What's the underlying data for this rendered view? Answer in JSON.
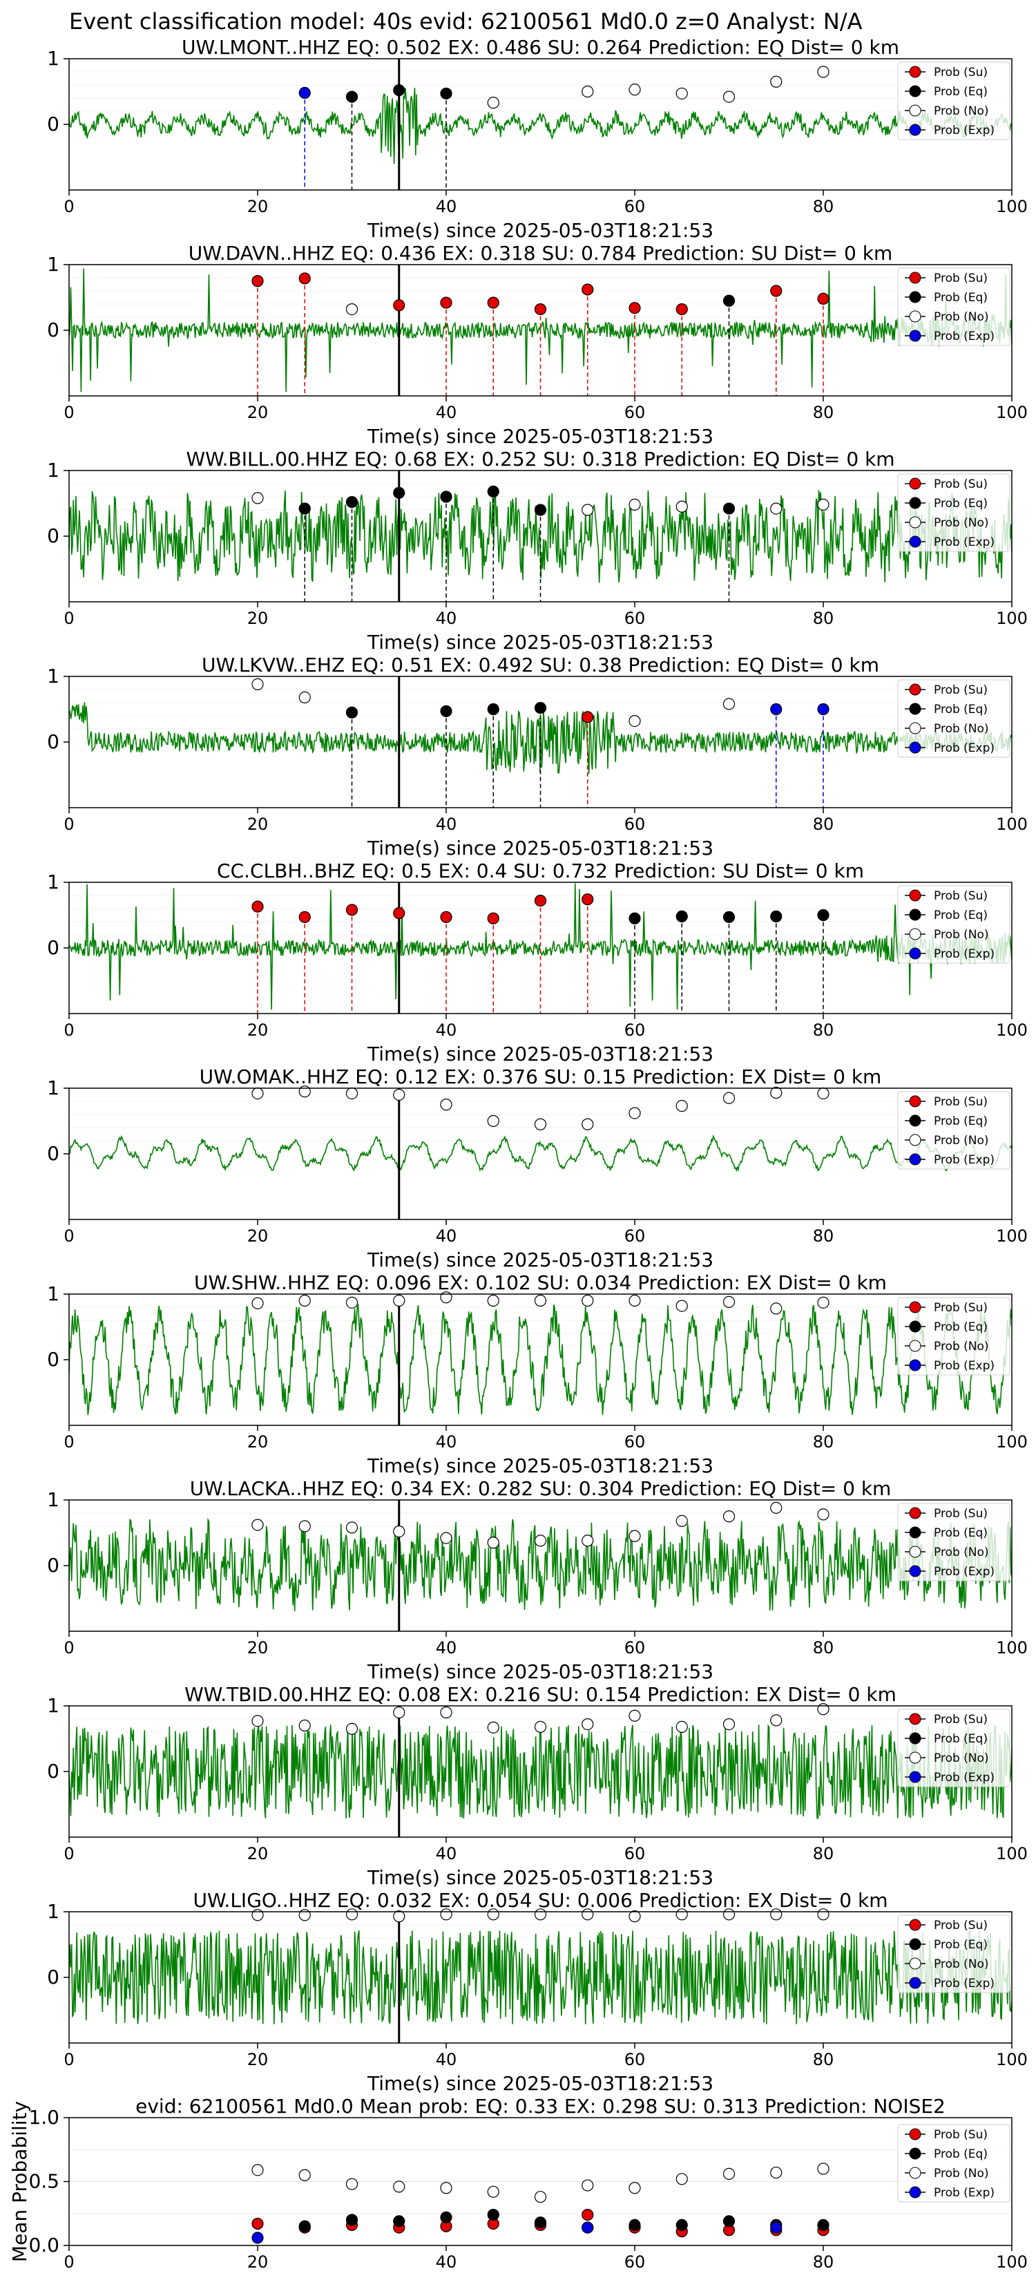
{
  "figure": {
    "suptitle": "Event classification model: 40s evid: 62100561 Md0.0 z=0 Analyst: N/A",
    "xlabel": "Time(s) since 2025-05-03T18:21:53",
    "legend": [
      "Prob (Su)",
      "Prob (Eq)",
      "Prob (No)",
      "Prob (Exp)"
    ],
    "colors": {
      "su": "#e00000",
      "eq": "#000000",
      "no": "#ffffff",
      "exp": "#0000e0",
      "trace": "#007f00",
      "marker_line": "#000000"
    }
  },
  "chart_data": [
    {
      "type": "scatter",
      "title": "UW.LMONT..HHZ   EQ: 0.502  EX: 0.486  SU: 0.264   Prediction: EQ    Dist= 0 km",
      "xlim": [
        0,
        100
      ],
      "xticks": [
        0,
        20,
        40,
        60,
        80,
        100
      ],
      "yticks": [
        0,
        1
      ],
      "event_line_x": 35,
      "trace_seed": 11,
      "trace_style": "burst",
      "series": [
        {
          "name": "Prob (Su)",
          "points": []
        },
        {
          "name": "Prob (Eq)",
          "points": [
            [
              30,
              0.42
            ],
            [
              35,
              0.52
            ],
            [
              40,
              0.47
            ]
          ]
        },
        {
          "name": "Prob (No)",
          "points": [
            [
              45,
              0.33
            ],
            [
              55,
              0.5
            ],
            [
              60,
              0.53
            ],
            [
              65,
              0.47
            ],
            [
              70,
              0.42
            ],
            [
              75,
              0.65
            ],
            [
              80,
              0.8
            ]
          ]
        },
        {
          "name": "Prob (Exp)",
          "points": [
            [
              25,
              0.48
            ]
          ]
        }
      ]
    },
    {
      "type": "scatter",
      "title": "UW.DAVN..HHZ   EQ: 0.436  EX: 0.318  SU: 0.784   Prediction: SU    Dist= 0 km",
      "xlim": [
        0,
        100
      ],
      "xticks": [
        0,
        20,
        40,
        60,
        80,
        100
      ],
      "yticks": [
        0,
        1
      ],
      "event_line_x": 35,
      "trace_seed": 22,
      "trace_style": "spiky",
      "series": [
        {
          "name": "Prob (Su)",
          "points": [
            [
              20,
              0.75
            ],
            [
              25,
              0.79
            ],
            [
              35,
              0.38
            ],
            [
              40,
              0.42
            ],
            [
              45,
              0.42
            ],
            [
              50,
              0.32
            ],
            [
              55,
              0.62
            ],
            [
              60,
              0.34
            ],
            [
              65,
              0.32
            ],
            [
              75,
              0.6
            ],
            [
              80,
              0.48
            ]
          ]
        },
        {
          "name": "Prob (Eq)",
          "points": [
            [
              70,
              0.45
            ]
          ]
        },
        {
          "name": "Prob (No)",
          "points": [
            [
              30,
              0.32
            ]
          ]
        },
        {
          "name": "Prob (Exp)",
          "points": []
        }
      ]
    },
    {
      "type": "scatter",
      "title": "WW.BILL.00.HHZ   EQ: 0.68  EX: 0.252  SU: 0.318   Prediction: EQ    Dist= 0 km",
      "xlim": [
        0,
        100
      ],
      "xticks": [
        0,
        20,
        40,
        60,
        80,
        100
      ],
      "yticks": [
        0,
        1
      ],
      "event_line_x": 35,
      "trace_seed": 33,
      "trace_style": "noisy",
      "series": [
        {
          "name": "Prob (Su)",
          "points": []
        },
        {
          "name": "Prob (Eq)",
          "points": [
            [
              25,
              0.42
            ],
            [
              30,
              0.52
            ],
            [
              35,
              0.66
            ],
            [
              40,
              0.6
            ],
            [
              45,
              0.68
            ],
            [
              50,
              0.4
            ],
            [
              70,
              0.42
            ]
          ]
        },
        {
          "name": "Prob (No)",
          "points": [
            [
              20,
              0.58
            ],
            [
              55,
              0.4
            ],
            [
              60,
              0.48
            ],
            [
              65,
              0.45
            ],
            [
              75,
              0.42
            ],
            [
              80,
              0.48
            ]
          ]
        },
        {
          "name": "Prob (Exp)",
          "points": []
        }
      ]
    },
    {
      "type": "scatter",
      "title": "UW.LKVW..EHZ   EQ: 0.51  EX: 0.492  SU: 0.38   Prediction: EQ    Dist= 0 km",
      "xlim": [
        0,
        100
      ],
      "xticks": [
        0,
        20,
        40,
        60,
        80,
        100
      ],
      "yticks": [
        0,
        1
      ],
      "event_line_x": 35,
      "trace_seed": 44,
      "trace_style": "quiet",
      "series": [
        {
          "name": "Prob (Su)",
          "points": [
            [
              55,
              0.38
            ]
          ]
        },
        {
          "name": "Prob (Eq)",
          "points": [
            [
              30,
              0.45
            ],
            [
              40,
              0.47
            ],
            [
              45,
              0.5
            ],
            [
              50,
              0.52
            ]
          ]
        },
        {
          "name": "Prob (No)",
          "points": [
            [
              20,
              0.88
            ],
            [
              25,
              0.68
            ],
            [
              60,
              0.32
            ],
            [
              70,
              0.58
            ]
          ]
        },
        {
          "name": "Prob (Exp)",
          "points": [
            [
              75,
              0.5
            ],
            [
              80,
              0.5
            ]
          ]
        }
      ]
    },
    {
      "type": "scatter",
      "title": "CC.CLBH..BHZ   EQ: 0.5  EX: 0.4  SU: 0.732   Prediction: SU    Dist= 0 km",
      "xlim": [
        0,
        100
      ],
      "xticks": [
        0,
        20,
        40,
        60,
        80,
        100
      ],
      "yticks": [
        0,
        1
      ],
      "event_line_x": 35,
      "trace_seed": 55,
      "trace_style": "spiky",
      "series": [
        {
          "name": "Prob (Su)",
          "points": [
            [
              20,
              0.63
            ],
            [
              25,
              0.47
            ],
            [
              30,
              0.58
            ],
            [
              35,
              0.53
            ],
            [
              40,
              0.47
            ],
            [
              45,
              0.45
            ],
            [
              50,
              0.72
            ],
            [
              55,
              0.74
            ]
          ]
        },
        {
          "name": "Prob (Eq)",
          "points": [
            [
              60,
              0.45
            ],
            [
              65,
              0.48
            ],
            [
              70,
              0.47
            ],
            [
              75,
              0.48
            ],
            [
              80,
              0.5
            ]
          ]
        },
        {
          "name": "Prob (No)",
          "points": []
        },
        {
          "name": "Prob (Exp)",
          "points": []
        }
      ]
    },
    {
      "type": "scatter",
      "title": "UW.OMAK..HHZ   EQ: 0.12  EX: 0.376  SU: 0.15   Prediction: EX    Dist= 0 km",
      "xlim": [
        0,
        100
      ],
      "xticks": [
        0,
        20,
        40,
        60,
        80,
        100
      ],
      "yticks": [
        0,
        1
      ],
      "event_line_x": 35,
      "trace_seed": 66,
      "trace_style": "smooth",
      "series": [
        {
          "name": "Prob (Su)",
          "points": []
        },
        {
          "name": "Prob (Eq)",
          "points": []
        },
        {
          "name": "Prob (No)",
          "points": [
            [
              20,
              0.92
            ],
            [
              25,
              0.95
            ],
            [
              30,
              0.92
            ],
            [
              35,
              0.9
            ],
            [
              40,
              0.75
            ],
            [
              45,
              0.5
            ],
            [
              50,
              0.45
            ],
            [
              55,
              0.45
            ],
            [
              60,
              0.62
            ],
            [
              65,
              0.73
            ],
            [
              70,
              0.85
            ],
            [
              75,
              0.93
            ],
            [
              80,
              0.92
            ]
          ]
        },
        {
          "name": "Prob (Exp)",
          "points": []
        }
      ]
    },
    {
      "type": "scatter",
      "title": "UW.SHW..HHZ   EQ: 0.096  EX: 0.102  SU: 0.034   Prediction: EX    Dist= 0 km",
      "xlim": [
        0,
        100
      ],
      "xticks": [
        0,
        20,
        40,
        60,
        80,
        100
      ],
      "yticks": [
        0,
        1
      ],
      "event_line_x": 35,
      "trace_seed": 77,
      "trace_style": "wave",
      "series": [
        {
          "name": "Prob (Su)",
          "points": []
        },
        {
          "name": "Prob (Eq)",
          "points": []
        },
        {
          "name": "Prob (No)",
          "points": [
            [
              20,
              0.86
            ],
            [
              25,
              0.9
            ],
            [
              30,
              0.87
            ],
            [
              35,
              0.9
            ],
            [
              40,
              0.95
            ],
            [
              45,
              0.9
            ],
            [
              50,
              0.9
            ],
            [
              55,
              0.9
            ],
            [
              60,
              0.9
            ],
            [
              65,
              0.82
            ],
            [
              70,
              0.88
            ],
            [
              75,
              0.78
            ],
            [
              80,
              0.87
            ]
          ]
        },
        {
          "name": "Prob (Exp)",
          "points": []
        }
      ]
    },
    {
      "type": "scatter",
      "title": "UW.LACKA..HHZ   EQ: 0.34  EX: 0.282  SU: 0.304   Prediction: EQ    Dist= 0 km",
      "xlim": [
        0,
        100
      ],
      "xticks": [
        0,
        20,
        40,
        60,
        80,
        100
      ],
      "yticks": [
        0,
        1
      ],
      "event_line_x": 35,
      "trace_seed": 88,
      "trace_style": "noisy",
      "series": [
        {
          "name": "Prob (Su)",
          "points": []
        },
        {
          "name": "Prob (Eq)",
          "points": []
        },
        {
          "name": "Prob (No)",
          "points": [
            [
              20,
              0.62
            ],
            [
              25,
              0.6
            ],
            [
              30,
              0.58
            ],
            [
              35,
              0.52
            ],
            [
              40,
              0.42
            ],
            [
              45,
              0.35
            ],
            [
              50,
              0.38
            ],
            [
              55,
              0.38
            ],
            [
              60,
              0.45
            ],
            [
              65,
              0.68
            ],
            [
              70,
              0.75
            ],
            [
              75,
              0.88
            ],
            [
              80,
              0.78
            ]
          ]
        },
        {
          "name": "Prob (Exp)",
          "points": []
        }
      ]
    },
    {
      "type": "scatter",
      "title": "WW.TBID.00.HHZ   EQ: 0.08  EX: 0.216  SU: 0.154   Prediction: EX    Dist= 0 km",
      "xlim": [
        0,
        100
      ],
      "xticks": [
        0,
        20,
        40,
        60,
        80,
        100
      ],
      "yticks": [
        0,
        1
      ],
      "event_line_x": 35,
      "trace_seed": 99,
      "trace_style": "dense",
      "series": [
        {
          "name": "Prob (Su)",
          "points": []
        },
        {
          "name": "Prob (Eq)",
          "points": []
        },
        {
          "name": "Prob (No)",
          "points": [
            [
              20,
              0.77
            ],
            [
              25,
              0.7
            ],
            [
              30,
              0.65
            ],
            [
              35,
              0.9
            ],
            [
              40,
              0.9
            ],
            [
              45,
              0.67
            ],
            [
              50,
              0.68
            ],
            [
              55,
              0.72
            ],
            [
              60,
              0.85
            ],
            [
              65,
              0.68
            ],
            [
              70,
              0.72
            ],
            [
              75,
              0.78
            ],
            [
              80,
              0.95
            ]
          ]
        },
        {
          "name": "Prob (Exp)",
          "points": []
        }
      ]
    },
    {
      "type": "scatter",
      "title": "UW.LIGO..HHZ   EQ: 0.032  EX: 0.054  SU: 0.006   Prediction: EX    Dist= 0 km",
      "xlim": [
        0,
        100
      ],
      "xticks": [
        0,
        20,
        40,
        60,
        80,
        100
      ],
      "yticks": [
        0,
        1
      ],
      "event_line_x": 35,
      "trace_seed": 111,
      "trace_style": "dense",
      "series": [
        {
          "name": "Prob (Su)",
          "points": []
        },
        {
          "name": "Prob (Eq)",
          "points": []
        },
        {
          "name": "Prob (No)",
          "points": [
            [
              20,
              0.95
            ],
            [
              25,
              0.95
            ],
            [
              30,
              0.96
            ],
            [
              35,
              0.93
            ],
            [
              40,
              0.96
            ],
            [
              45,
              0.96
            ],
            [
              50,
              0.96
            ],
            [
              55,
              0.96
            ],
            [
              60,
              0.93
            ],
            [
              65,
              0.96
            ],
            [
              70,
              0.96
            ],
            [
              75,
              0.96
            ],
            [
              80,
              0.96
            ]
          ]
        },
        {
          "name": "Prob (Exp)",
          "points": []
        }
      ]
    },
    {
      "type": "scatter",
      "title": "evid: 62100561  Md0.0   Mean prob:   EQ: 0.33  EX: 0.298  SU: 0.313   Prediction: NOISE2",
      "ylabel": "Mean Probability",
      "xlim": [
        0,
        100
      ],
      "ylim": [
        0,
        1
      ],
      "xticks": [
        0,
        20,
        40,
        60,
        80,
        100
      ],
      "yticks": [
        0,
        0.5,
        1
      ],
      "ytick_labels": [
        "0.0",
        "0.5",
        "1.0"
      ],
      "series": [
        {
          "name": "Prob (Su)",
          "points": [
            [
              20,
              0.17
            ],
            [
              25,
              0.14
            ],
            [
              30,
              0.16
            ],
            [
              35,
              0.14
            ],
            [
              40,
              0.15
            ],
            [
              45,
              0.17
            ],
            [
              50,
              0.16
            ],
            [
              55,
              0.24
            ],
            [
              60,
              0.14
            ],
            [
              65,
              0.11
            ],
            [
              70,
              0.12
            ],
            [
              75,
              0.12
            ],
            [
              80,
              0.12
            ]
          ]
        },
        {
          "name": "Prob (Eq)",
          "points": [
            [
              25,
              0.15
            ],
            [
              30,
              0.2
            ],
            [
              35,
              0.19
            ],
            [
              40,
              0.22
            ],
            [
              45,
              0.24
            ],
            [
              50,
              0.18
            ],
            [
              55,
              0.14
            ],
            [
              60,
              0.16
            ],
            [
              65,
              0.16
            ],
            [
              70,
              0.19
            ],
            [
              75,
              0.16
            ],
            [
              80,
              0.16
            ]
          ]
        },
        {
          "name": "Prob (No)",
          "points": [
            [
              20,
              0.59
            ],
            [
              25,
              0.55
            ],
            [
              30,
              0.48
            ],
            [
              35,
              0.46
            ],
            [
              40,
              0.45
            ],
            [
              45,
              0.42
            ],
            [
              50,
              0.38
            ],
            [
              55,
              0.47
            ],
            [
              60,
              0.45
            ],
            [
              65,
              0.52
            ],
            [
              70,
              0.56
            ],
            [
              75,
              0.57
            ],
            [
              80,
              0.6
            ]
          ]
        },
        {
          "name": "Prob (Exp)",
          "points": [
            [
              20,
              0.06
            ],
            [
              55,
              0.14
            ],
            [
              75,
              0.14
            ]
          ]
        }
      ]
    }
  ]
}
